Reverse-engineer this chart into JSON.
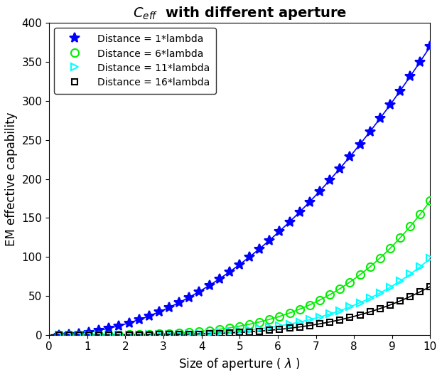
{
  "title": "$C_{eff}$  with different aperture",
  "xlabel": "Size of aperture ( $\\lambda$ )",
  "ylabel": "EM effective capability",
  "xlim": [
    0,
    10
  ],
  "ylim": [
    0,
    400
  ],
  "xticks": [
    0,
    1,
    2,
    3,
    4,
    5,
    6,
    7,
    8,
    9,
    10
  ],
  "yticks": [
    0,
    50,
    100,
    150,
    200,
    250,
    300,
    350,
    400
  ],
  "series": [
    {
      "label": "Distance = 1*lambda",
      "color": "#0000FF",
      "marker": "*",
      "markersize": 10,
      "markerfacecolor": "#0000FF",
      "markeredgecolor": "#0000FF",
      "alpha": 3.7,
      "beta": 2.0,
      "shift": 0.0
    },
    {
      "label": "Distance = 6*lambda",
      "color": "#00EE00",
      "marker": "o",
      "markersize": 8,
      "markerfacecolor": "none",
      "markeredgecolor": "#00EE00",
      "alpha": 0.185,
      "beta": 3.0,
      "shift": 0.0
    },
    {
      "label": "Distance = 11*lambda",
      "color": "#00FFFF",
      "marker": ">",
      "markersize": 7,
      "markerfacecolor": "none",
      "markeredgecolor": "#00FFFF",
      "alpha": 0.098,
      "beta": 3.0,
      "shift": 0.0
    },
    {
      "label": "Distance = 16*lambda",
      "color": "#000000",
      "marker": "s",
      "markersize": 6,
      "markerfacecolor": "none",
      "markeredgecolor": "#000000",
      "alpha": 0.062,
      "beta": 3.0,
      "shift": 0.0
    }
  ],
  "n_line_points": 400,
  "n_marker_points": 38,
  "x_line_start": 0.05,
  "x_line_end": 10.0,
  "x_marker_start": 0.25,
  "x_marker_end": 10.0,
  "linewidth": 1.2,
  "markeredgewidth": 1.5,
  "legend_loc": "upper left",
  "legend_fontsize": 10,
  "title_fontsize": 14,
  "label_fontsize": 12,
  "tick_fontsize": 11,
  "figwidth": 6.22,
  "figheight": 5.3,
  "dpi": 100
}
